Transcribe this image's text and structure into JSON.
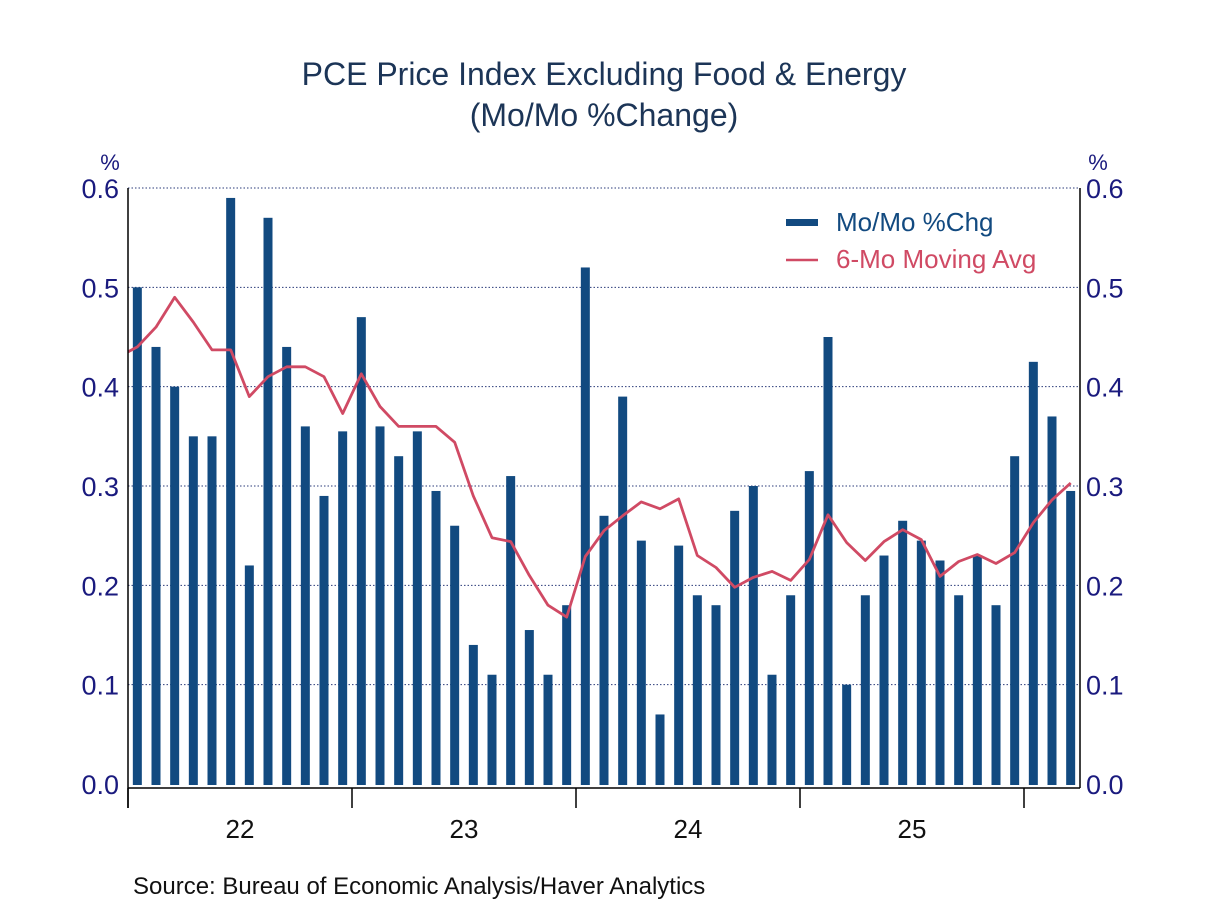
{
  "chart_data": {
    "type": "bar",
    "title": "PCE Price Index Excluding Food & Energy",
    "subtitle": "(Mo/Mo %Change)",
    "xlabel": "",
    "ylabel": "%",
    "ylabel_right": "%",
    "ylim": [
      0.0,
      0.6
    ],
    "yticks": [
      "0.0",
      "0.1",
      "0.2",
      "0.3",
      "0.4",
      "0.5",
      "0.6"
    ],
    "ytick_values": [
      0.0,
      0.1,
      0.2,
      0.3,
      0.4,
      0.5,
      0.6
    ],
    "grid": true,
    "legend_position": "top-right",
    "x_year_labels": [
      "22",
      "23",
      "24",
      "25"
    ],
    "categories": [
      "Jan 2022",
      "Feb 2022",
      "Mar 2022",
      "Apr 2022",
      "May 2022",
      "Jun 2022",
      "Jul 2022",
      "Aug 2022",
      "Sep 2022",
      "Oct 2022",
      "Nov 2022",
      "Dec 2022",
      "Jan 2023",
      "Feb 2023",
      "Mar 2023",
      "Apr 2023",
      "May 2023",
      "Jun 2023",
      "Jul 2023",
      "Aug 2023",
      "Sep 2023",
      "Oct 2023",
      "Nov 2023",
      "Dec 2023",
      "Jan 2024",
      "Feb 2024",
      "Mar 2024",
      "Apr 2024",
      "May 2024",
      "Jun 2024",
      "Jul 2024",
      "Aug 2024",
      "Sep 2024",
      "Oct 2024",
      "Nov 2024",
      "Dec 2024",
      "Jan 2025",
      "Feb 2025",
      "Mar 2025",
      "Apr 2025",
      "May 2025",
      "Jun 2025",
      "Jul 2025",
      "Aug 2025",
      "Sep 2025",
      "Oct 2025",
      "Nov 2025",
      "Dec 2025",
      "Jan 2026",
      "Feb 2026",
      "Mar 2026"
    ],
    "series": [
      {
        "name": "Mo/Mo %Chg",
        "type": "bar",
        "color": "#124a80",
        "values": [
          0.5,
          0.44,
          0.4,
          0.35,
          0.35,
          0.59,
          0.22,
          0.57,
          0.44,
          0.36,
          0.29,
          0.355,
          0.47,
          0.36,
          0.33,
          0.355,
          0.295,
          0.26,
          0.14,
          0.11,
          0.31,
          0.155,
          0.11,
          0.18,
          0.52,
          0.27,
          0.39,
          0.245,
          0.07,
          0.24,
          0.19,
          0.18,
          0.275,
          0.3,
          0.11,
          0.19,
          0.315,
          0.45,
          0.1,
          0.19,
          0.23,
          0.265,
          0.245,
          0.225,
          0.19,
          0.23,
          0.18,
          0.33,
          0.425,
          0.37,
          0.295
        ]
      },
      {
        "name": "6-Mo Moving Avg",
        "type": "line",
        "color": "#d04a64",
        "values": [
          0.44,
          0.46,
          0.49,
          0.465,
          0.437,
          0.437,
          0.39,
          0.41,
          0.42,
          0.42,
          0.41,
          0.373,
          0.413,
          0.38,
          0.36,
          0.36,
          0.36,
          0.344,
          0.29,
          0.248,
          0.244,
          0.21,
          0.18,
          0.168,
          0.229,
          0.255,
          0.27,
          0.284,
          0.277,
          0.287,
          0.23,
          0.218,
          0.198,
          0.208,
          0.214,
          0.205,
          0.226,
          0.271,
          0.243,
          0.225,
          0.244,
          0.256,
          0.246,
          0.209,
          0.224,
          0.231,
          0.222,
          0.233,
          0.263,
          0.286,
          0.303
        ]
      }
    ],
    "source": "Source:  Bureau of Economic Analysis/Haver Analytics"
  }
}
